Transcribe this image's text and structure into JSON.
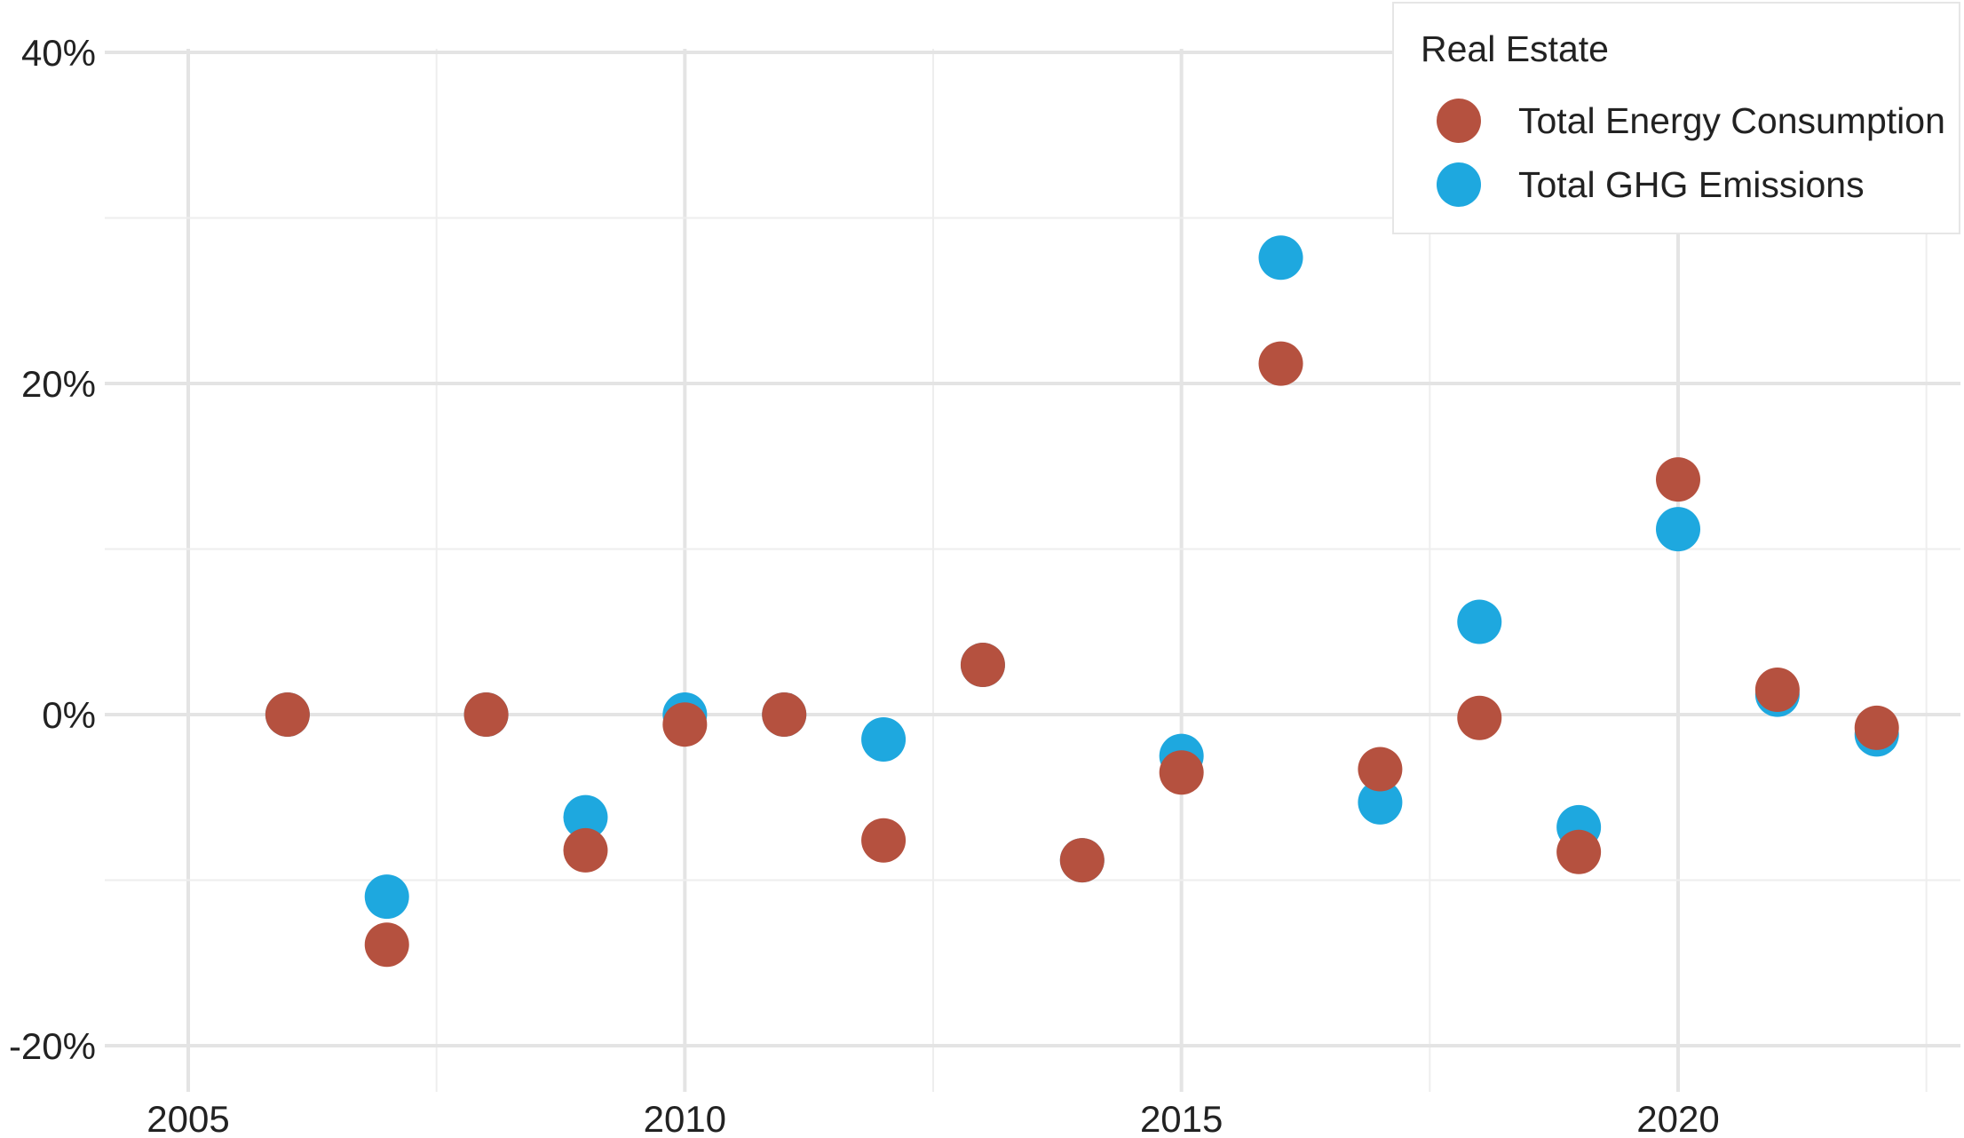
{
  "chart_data": {
    "type": "scatter",
    "title": "",
    "xlabel": "",
    "ylabel": "",
    "xlim": [
      2004.8,
      2022.8
    ],
    "ylim": [
      -22,
      40
    ],
    "x_ticks": [
      2005,
      2010,
      2015,
      2020
    ],
    "x_tick_labels": [
      "2005",
      "2010",
      "2015",
      "2020"
    ],
    "y_ticks": [
      -20,
      0,
      20,
      40
    ],
    "y_tick_labels": [
      "-20%",
      "0%",
      "20%",
      "40%"
    ],
    "grid": true,
    "legend": {
      "title": "Real Estate",
      "position": "top-right"
    },
    "series": [
      {
        "name": "Total Energy Consumption",
        "color": "#b5513f",
        "points": [
          {
            "x": 2006,
            "y": 0.0
          },
          {
            "x": 2007,
            "y": -13.9
          },
          {
            "x": 2008,
            "y": 0.0
          },
          {
            "x": 2009,
            "y": -8.2
          },
          {
            "x": 2010,
            "y": -0.6
          },
          {
            "x": 2011,
            "y": 0.0
          },
          {
            "x": 2012,
            "y": -7.6
          },
          {
            "x": 2013,
            "y": 3.0
          },
          {
            "x": 2014,
            "y": -8.8
          },
          {
            "x": 2015,
            "y": -3.5
          },
          {
            "x": 2016,
            "y": 21.2
          },
          {
            "x": 2017,
            "y": -3.3
          },
          {
            "x": 2018,
            "y": -0.2
          },
          {
            "x": 2019,
            "y": -8.3
          },
          {
            "x": 2020,
            "y": 14.2
          },
          {
            "x": 2021,
            "y": 1.5
          },
          {
            "x": 2022,
            "y": -0.8
          }
        ]
      },
      {
        "name": "Total GHG Emissions",
        "color": "#1ea8df",
        "points": [
          {
            "x": 2006,
            "y": 0.0
          },
          {
            "x": 2007,
            "y": -11.0
          },
          {
            "x": 2008,
            "y": 0.0
          },
          {
            "x": 2009,
            "y": -6.2
          },
          {
            "x": 2010,
            "y": 0.0
          },
          {
            "x": 2011,
            "y": 0.0
          },
          {
            "x": 2012,
            "y": -1.5
          },
          {
            "x": 2013,
            "y": 3.0
          },
          {
            "x": 2014,
            "y": -8.8
          },
          {
            "x": 2015,
            "y": -2.5
          },
          {
            "x": 2016,
            "y": 27.6
          },
          {
            "x": 2017,
            "y": -5.3
          },
          {
            "x": 2018,
            "y": 5.6
          },
          {
            "x": 2019,
            "y": -6.8
          },
          {
            "x": 2020,
            "y": 11.2
          },
          {
            "x": 2021,
            "y": 1.2
          },
          {
            "x": 2022,
            "y": -1.2
          }
        ]
      }
    ]
  }
}
